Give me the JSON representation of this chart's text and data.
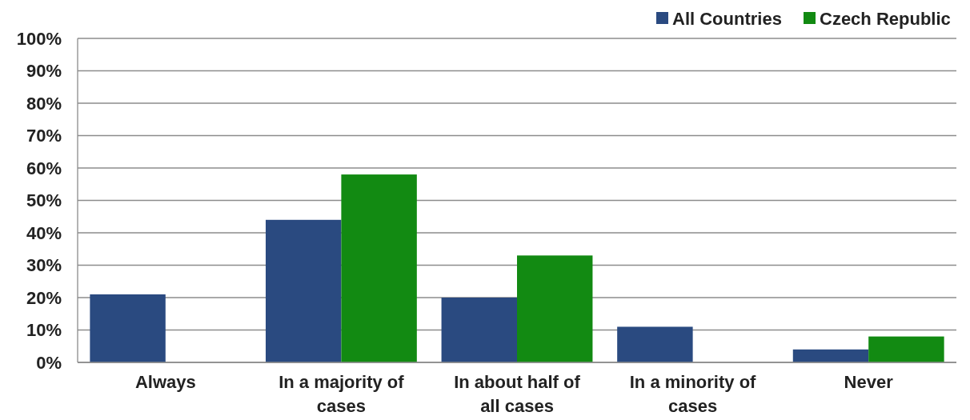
{
  "chart_data": {
    "type": "bar",
    "categories": [
      "Always",
      "In a majority of cases",
      "In about half of all cases",
      "In a minority of cases",
      "Never"
    ],
    "series": [
      {
        "name": "All Countries",
        "color": "#2a4a80",
        "values": [
          21,
          44,
          20,
          11,
          4
        ]
      },
      {
        "name": "Czech Republic",
        "color": "#128a12",
        "values": [
          0,
          58,
          33,
          0,
          8
        ]
      }
    ],
    "ylim": [
      0,
      100
    ],
    "yticks": [
      {
        "value": 0,
        "label": "0%"
      },
      {
        "value": 10,
        "label": "10%"
      },
      {
        "value": 20,
        "label": "20%"
      },
      {
        "value": 30,
        "label": "30%"
      },
      {
        "value": 40,
        "label": "40%"
      },
      {
        "value": 50,
        "label": "50%"
      },
      {
        "value": 60,
        "label": "60%"
      },
      {
        "value": 70,
        "label": "70%"
      },
      {
        "value": 80,
        "label": "80%"
      },
      {
        "value": 90,
        "label": "90%"
      },
      {
        "value": 100,
        "label": "100%"
      }
    ],
    "grid": "y",
    "legend": "top right"
  }
}
